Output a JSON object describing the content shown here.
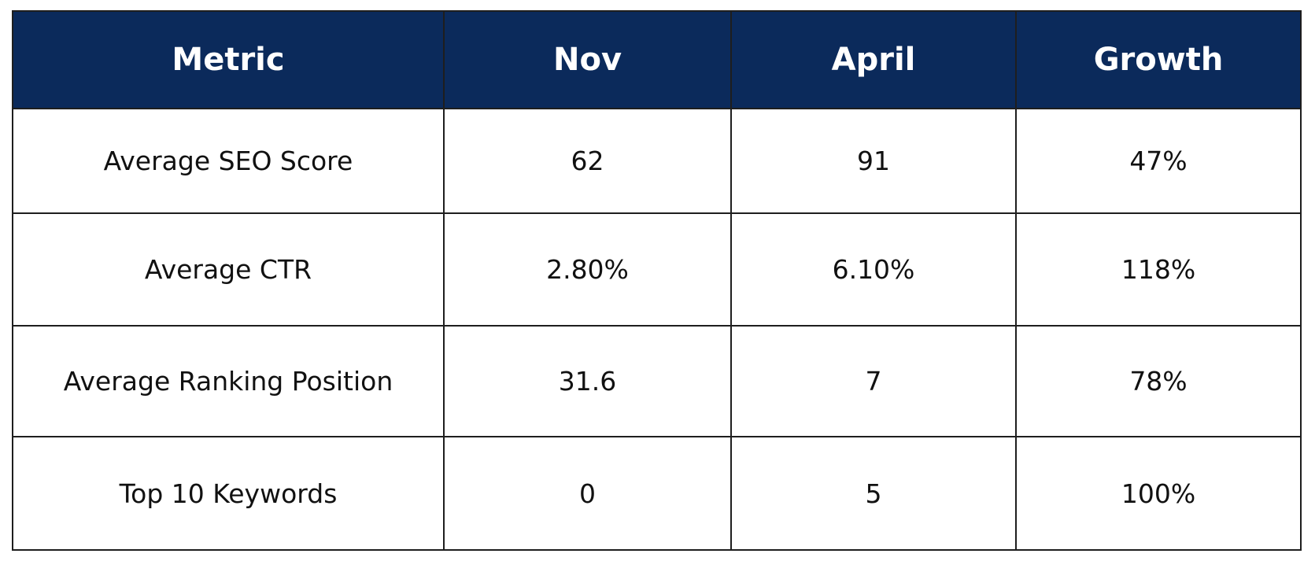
{
  "table": {
    "header": [
      "Metric",
      "Nov",
      "April",
      "Growth"
    ],
    "rows": [
      [
        "Average SEO Score",
        "62",
        "91",
        "47%"
      ],
      [
        "Average CTR",
        "2.80%",
        "6.10%",
        "118%"
      ],
      [
        "Average Ranking Position",
        "31.6",
        "7",
        "78%"
      ],
      [
        "Top 10 Keywords",
        "0",
        "5",
        "100%"
      ]
    ]
  }
}
